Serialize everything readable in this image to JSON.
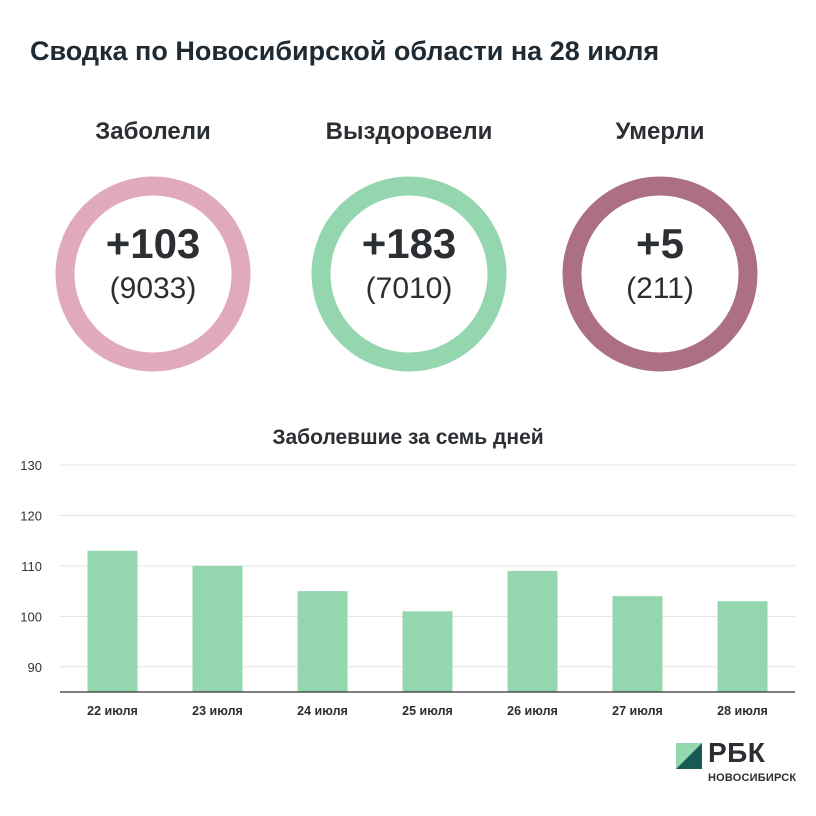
{
  "title": "Сводка по Новосибирской области на 28 июля",
  "stats": [
    {
      "label": "Заболели",
      "delta": "+103",
      "total": "(9033)",
      "color": "#e0aabb"
    },
    {
      "label": "Выздоровели",
      "delta": "+183",
      "total": "(7010)",
      "color": "#94d6ad"
    },
    {
      "label": "Умерли",
      "delta": "+5",
      "total": "(211)",
      "color": "#ac6f84"
    }
  ],
  "chart_data": {
    "type": "bar",
    "title": "Заболевшие за семь дней",
    "categories": [
      "22 июля",
      "23 июля",
      "24 июля",
      "25 июля",
      "26 июля",
      "27 июля",
      "28 июля"
    ],
    "values": [
      113,
      110,
      105,
      101,
      109,
      104,
      103
    ],
    "ylim": [
      85,
      130
    ],
    "yticks": [
      90,
      100,
      110,
      120,
      130
    ],
    "grid": true,
    "bar_color": "#94d6ad"
  },
  "logo": {
    "text": "РБК",
    "subtitle": "НОВОСИБИРСК",
    "color_light": "#94d6ad",
    "color_dark": "#1a5a55"
  }
}
